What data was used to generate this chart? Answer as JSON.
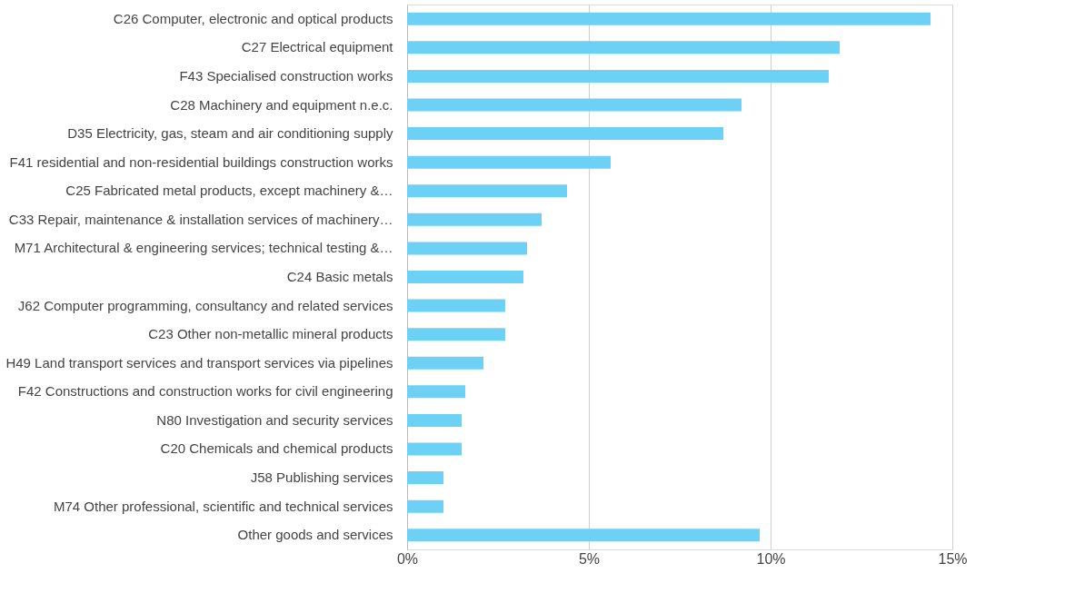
{
  "chart_data": {
    "type": "bar",
    "orientation": "horizontal",
    "categories": [
      "C26 Computer, electronic and optical products",
      "C27 Electrical equipment",
      "F43 Specialised construction works",
      "C28 Machinery and equipment n.e.c.",
      "D35 Electricity, gas, steam and air conditioning supply",
      "F41 residential and non-residential buildings construction works",
      "C25 Fabricated metal products, except machinery &…",
      "C33 Repair, maintenance & installation services of machinery…",
      "M71 Architectural & engineering services; technical testing &…",
      "C24 Basic metals",
      "J62 Computer programming, consultancy and related services",
      "C23 Other non-metallic mineral products",
      "H49 Land transport services and transport services via pipelines",
      "F42 Constructions and construction works for civil engineering",
      "N80 Investigation and security services",
      "C20 Chemicals and chemical products",
      "J58 Publishing services",
      "M74 Other professional, scientific and technical services",
      "Other goods and services"
    ],
    "values": [
      14.4,
      11.9,
      11.6,
      9.2,
      8.7,
      5.6,
      4.4,
      3.7,
      3.3,
      3.2,
      2.7,
      2.7,
      2.1,
      1.6,
      1.5,
      1.5,
      1.0,
      1.0,
      9.7
    ],
    "color": "#6dd0f5",
    "xlim": [
      0,
      15
    ],
    "xticks": [
      {
        "value": 0,
        "label": "0%"
      },
      {
        "value": 5,
        "label": "5%"
      },
      {
        "value": 10,
        "label": "10%"
      },
      {
        "value": 15,
        "label": "15%"
      }
    ],
    "grid": "x"
  }
}
